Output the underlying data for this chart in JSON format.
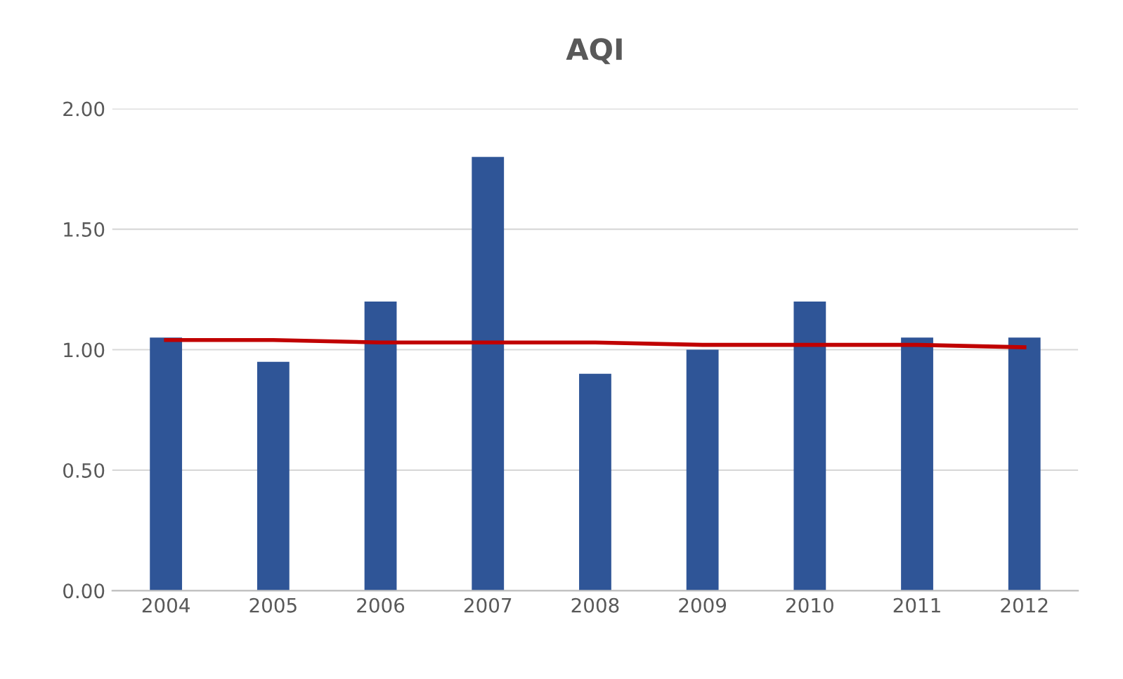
{
  "chart_data": {
    "type": "bar",
    "title": "AQI",
    "categories": [
      "2004",
      "2005",
      "2006",
      "2007",
      "2008",
      "2009",
      "2010",
      "2011",
      "2012"
    ],
    "series": [
      {
        "color": "#2f5597",
        "values": [
          1.05,
          0.95,
          1.2,
          1.8,
          0.9,
          1.0,
          1.2,
          1.05,
          1.05
        ]
      },
      {
        "type": "line",
        "color": "#c00000",
        "values": [
          1.04,
          1.04,
          1.03,
          1.03,
          1.03,
          1.02,
          1.02,
          1.02,
          1.01
        ]
      }
    ],
    "ylim": [
      0,
      2
    ],
    "yticks": [
      {
        "value": 0,
        "label": "0.00"
      },
      {
        "value": 0.5,
        "label": "0.50"
      },
      {
        "value": 1,
        "label": "1.00"
      },
      {
        "value": 1.5,
        "label": "1.50"
      },
      {
        "value": 2,
        "label": "2.00"
      }
    ],
    "grid": "y",
    "legend": false
  }
}
